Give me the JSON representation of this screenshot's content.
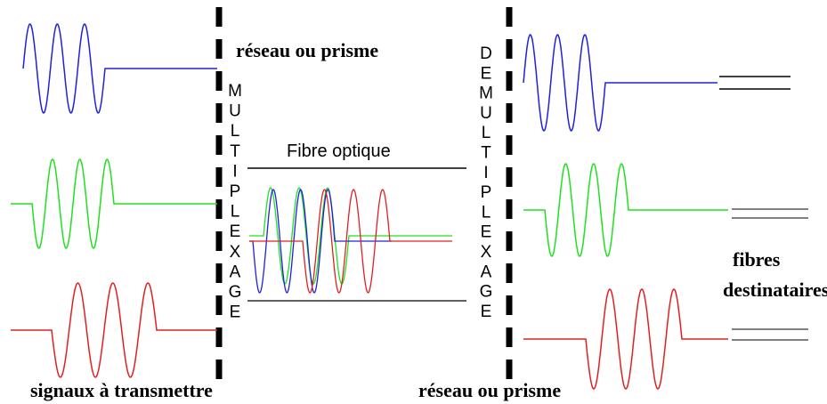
{
  "labels": {
    "mux_grating_top": "réseau ou prisme",
    "optical_fiber": "Fibre optique",
    "signals_to_transmit": "signaux à transmettre",
    "demux_grating_bottom": "réseau ou prisme",
    "destination_fibers_line1": "fibres",
    "destination_fibers_line2": "destinataires"
  },
  "vertical_words": {
    "multiplexing": "MULTIPLEXAGE",
    "demultiplexing": "DEMULTIPLEXAGE"
  },
  "colors": {
    "blue_signal": "#2020e0",
    "green_signal": "#20e020",
    "red_signal": "#e02020",
    "barrier": "#000000",
    "fiber_line": "#000000"
  }
}
